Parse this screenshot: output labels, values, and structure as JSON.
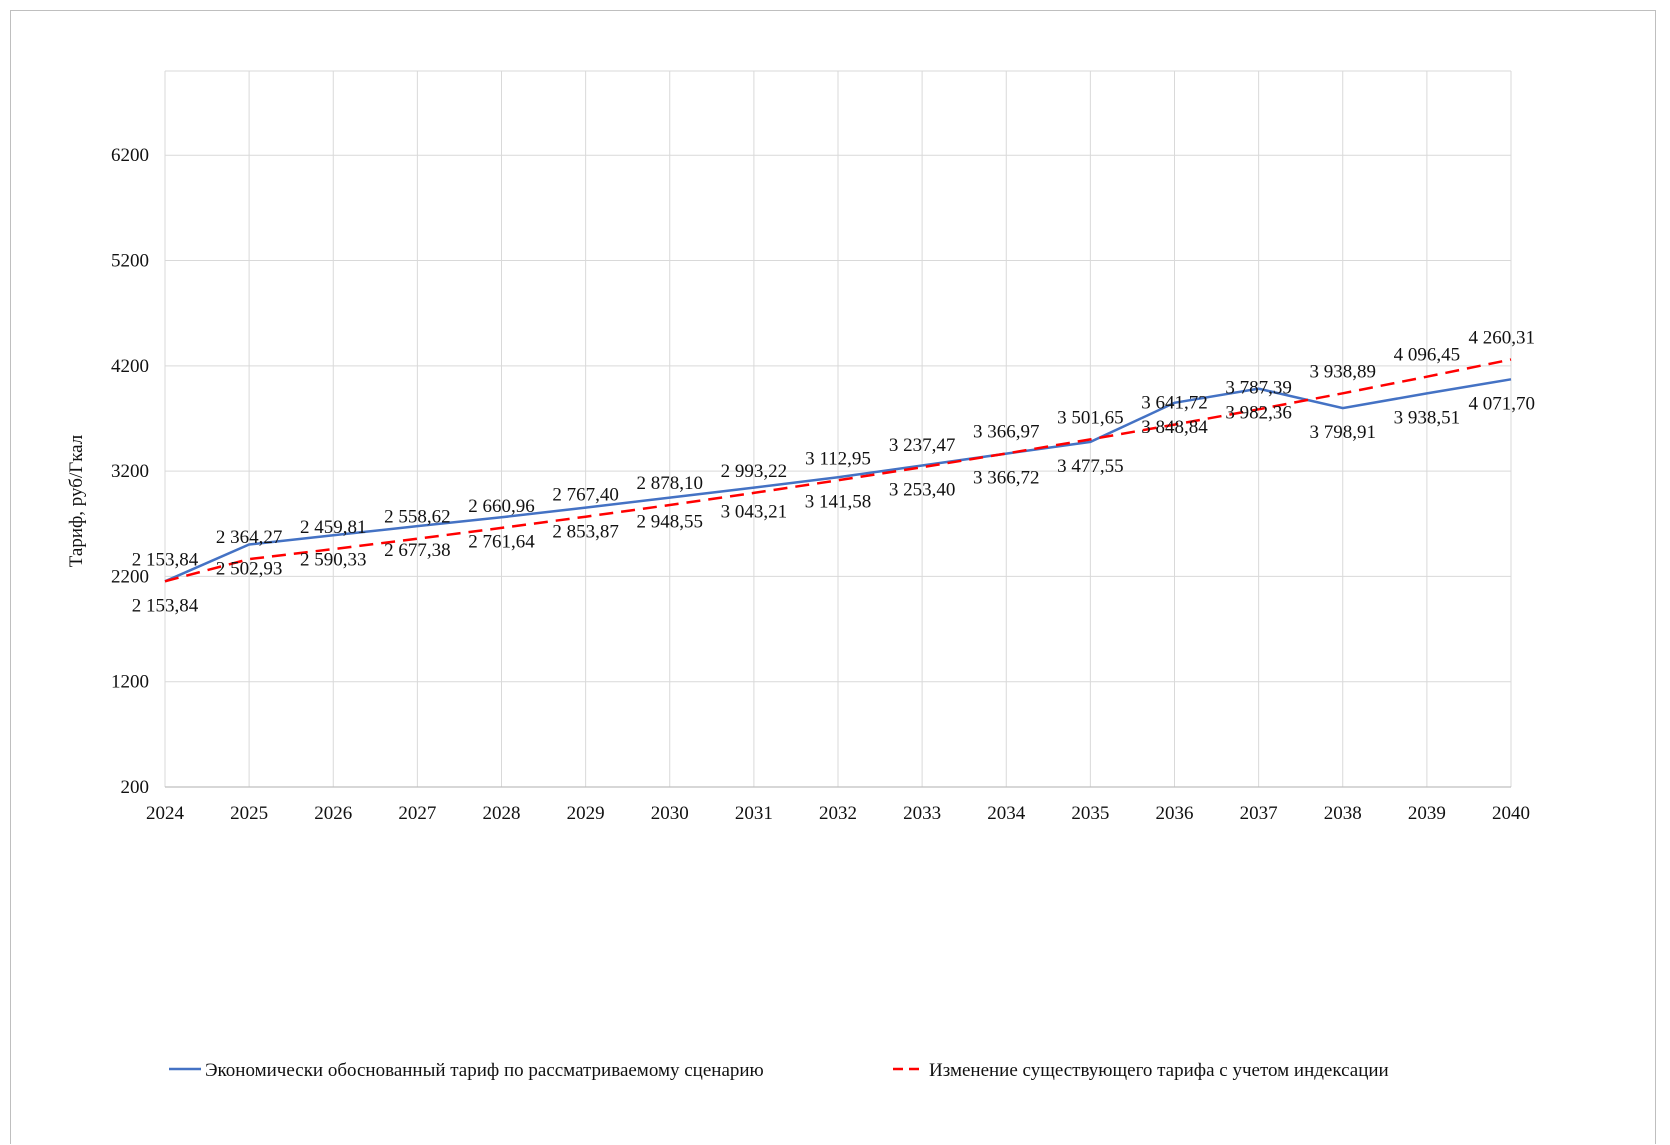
{
  "colors": {
    "series_1": "#4472c4",
    "series_2": "#ff0000",
    "grid": "#d9d9d9"
  },
  "chart_data": {
    "type": "line",
    "title": "",
    "xlabel": "",
    "ylabel": "Тариф, руб/Гкал",
    "x": [
      "2024",
      "2025",
      "2026",
      "2027",
      "2028",
      "2029",
      "2030",
      "2031",
      "2032",
      "2033",
      "2034",
      "2035",
      "2036",
      "2037",
      "2038",
      "2039",
      "2040"
    ],
    "y_ticks": [
      "200",
      "1200",
      "2200",
      "3200",
      "4200",
      "5200",
      "6200"
    ],
    "ylim": [
      200,
      7000
    ],
    "grid": true,
    "legend_position": "bottom",
    "series": [
      {
        "name": "Экономически обоснованный тариф по рассматриваемому сценарию",
        "style": "solid",
        "color": "#4472c4",
        "values": [
          2153.84,
          2502.93,
          2590.33,
          2677.38,
          2761.64,
          2853.87,
          2948.55,
          3043.21,
          3141.58,
          3253.4,
          3366.72,
          3477.55,
          3848.84,
          3982.36,
          3798.91,
          3938.51,
          4071.7
        ],
        "labels": [
          "2 153,84",
          "2 502,93",
          "2 590,33",
          "2 677,38",
          "2 761,64",
          "2 853,87",
          "2 948,55",
          "3 043,21",
          "3 141,58",
          "3 253,40",
          "3 366,72",
          "3 477,55",
          "3 848,84",
          "3 982,36",
          "3 798,91",
          "3 938,51",
          "4 071,70"
        ]
      },
      {
        "name": "Изменение существующего тарифа с учетом индексации",
        "style": "dashed",
        "color": "#ff0000",
        "values": [
          2153.84,
          2364.27,
          2459.81,
          2558.62,
          2660.96,
          2767.4,
          2878.1,
          2993.22,
          3112.95,
          3237.47,
          3366.97,
          3501.65,
          3641.72,
          3787.39,
          3938.89,
          4096.45,
          4260.31
        ],
        "labels": [
          "2 153,84",
          "2 364,27",
          "2 459,81",
          "2 558,62",
          "2 660,96",
          "2 767,40",
          "2 878,10",
          "2 993,22",
          "3 112,95",
          "3 237,47",
          "3 366,97",
          "3 501,65",
          "3 641,72",
          "3 787,39",
          "3 938,89",
          "4 096,45",
          "4 260,31"
        ]
      }
    ]
  }
}
